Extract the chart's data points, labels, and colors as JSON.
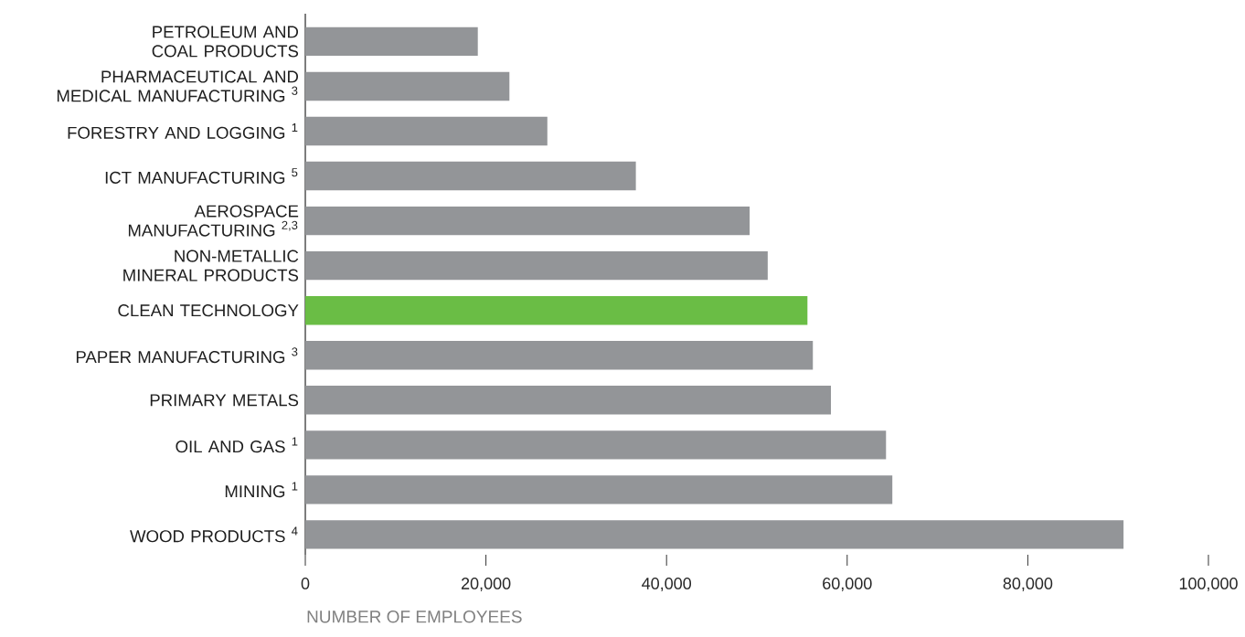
{
  "chart_data": {
    "type": "bar",
    "orientation": "horizontal",
    "xlabel": "NUMBER OF EMPLOYEES",
    "categories": [
      "PETROLEUM AND COAL PRODUCTS",
      "PHARMACEUTICAL AND MEDICAL MANUFACTURING $^{3}$",
      "FORESTRY AND LOGGING $^{1}$",
      "ICT MANUFACTURING $^{5}$",
      "AEROSPACE MANUFACTURING $^{2,3}$",
      "NON-METALLIC MINERAL PRODUCTS",
      "CLEAN TECHNOLOGY",
      "PAPER MANUFACTURING $^{3}$",
      "PRIMARY METALS",
      "OIL AND GAS $^{1}$",
      "MINING $^{1}$",
      "WOOD PRODUCTS $^{4}$"
    ],
    "values": [
      19100,
      22600,
      26800,
      36600,
      49200,
      51200,
      55600,
      56200,
      58200,
      64300,
      65000,
      90600
    ],
    "colors": [
      "#939598",
      "#939598",
      "#939598",
      "#939598",
      "#939598",
      "#939598",
      "#6abd45",
      "#939598",
      "#939598",
      "#939598",
      "#939598",
      "#939598"
    ],
    "xlim": [
      0,
      100000
    ],
    "xticks": [
      0,
      {
        "value": 20000,
        "label": "20,000"
      },
      {
        "value": 40000,
        "label": "40,000"
      },
      {
        "value": 60000,
        "label": "60,000"
      },
      {
        "value": 80000,
        "label": "80,000"
      },
      {
        "value": 100000,
        "label": "100,000"
      }
    ]
  }
}
